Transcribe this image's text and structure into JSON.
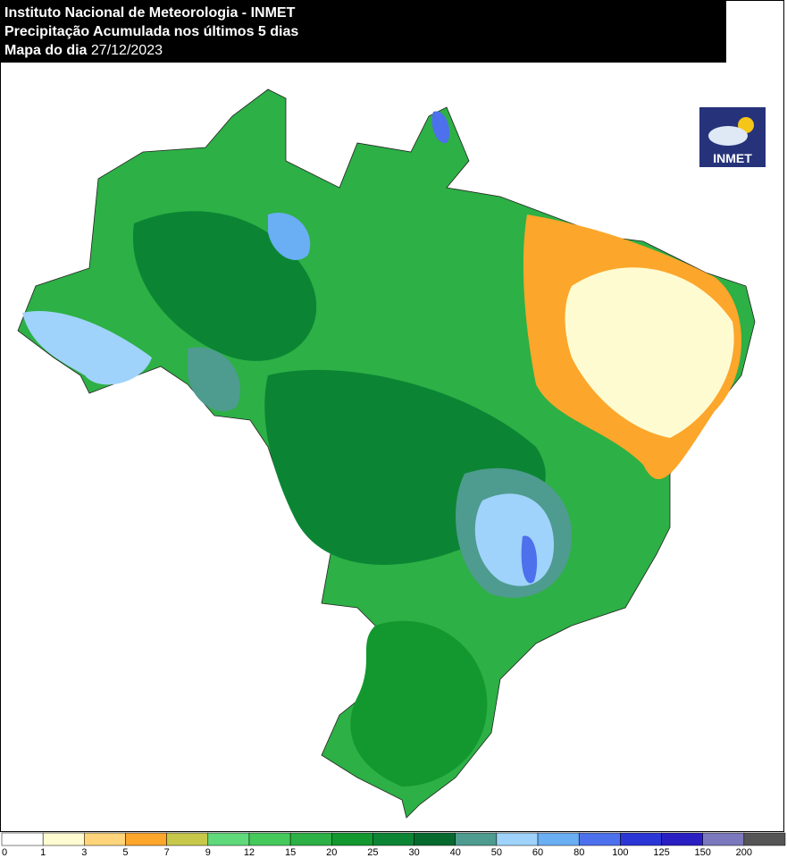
{
  "header": {
    "line1": "Instituto Nacional de Meteorologia - INMET",
    "line2": "Precipitação Acumulada nos últimos 5 dias",
    "line3_label": "Mapa do dia",
    "line3_date": "27/12/2023"
  },
  "logo": {
    "text": "INMET"
  },
  "legend": {
    "bounds": [
      0,
      1,
      3,
      5,
      7,
      9,
      12,
      15,
      20,
      25,
      30,
      40,
      50,
      60,
      80,
      100,
      125,
      150,
      200
    ],
    "colors": [
      "#ffffff",
      "#fefbd0",
      "#fed57a",
      "#fca62b",
      "#c7c84a",
      "#5fd97a",
      "#44c95a",
      "#2db045",
      "#13972f",
      "#0b8534",
      "#066a2e",
      "#4e9b8f",
      "#9fd3fb",
      "#6aaef4",
      "#4d70ec",
      "#2b36d6",
      "#2a1fc2",
      "#7b78bd",
      "#555555"
    ]
  }
}
